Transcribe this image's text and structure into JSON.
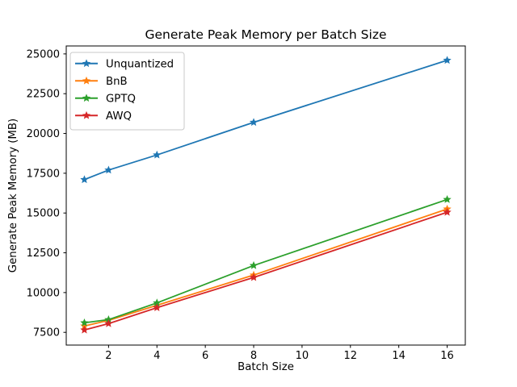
{
  "figure": {
    "background": "#ffffff"
  },
  "chart_data": {
    "type": "line",
    "title": "Generate Peak Memory per Batch Size",
    "xlabel": "Batch Size",
    "ylabel": "Generate Peak Memory (MB)",
    "x": [
      1,
      2,
      4,
      8,
      16
    ],
    "series": [
      {
        "name": "Unquantized",
        "color": "#1f77b4",
        "values": [
          17100,
          17700,
          18650,
          20700,
          24600
        ]
      },
      {
        "name": "BnB",
        "color": "#ff7f0e",
        "values": [
          7900,
          8250,
          9200,
          11100,
          15250
        ]
      },
      {
        "name": "GPTQ",
        "color": "#2ca02c",
        "values": [
          8100,
          8300,
          9350,
          11700,
          15850
        ]
      },
      {
        "name": "AWQ",
        "color": "#d62728",
        "values": [
          7650,
          8050,
          9050,
          10950,
          15050
        ]
      }
    ],
    "marker": "star",
    "line_width": 1.8,
    "xticks": [
      2,
      4,
      6,
      8,
      10,
      12,
      14,
      16
    ],
    "yticks": [
      7500,
      10000,
      12500,
      15000,
      17500,
      20000,
      22500,
      25000
    ],
    "xlim": [
      0.25,
      16.75
    ],
    "ylim": [
      6700,
      25500
    ],
    "grid": false,
    "legend_position": "upper-left",
    "legend_border_color": "#c9c9c9",
    "axis_color": "#000000",
    "background": "#ffffff"
  }
}
